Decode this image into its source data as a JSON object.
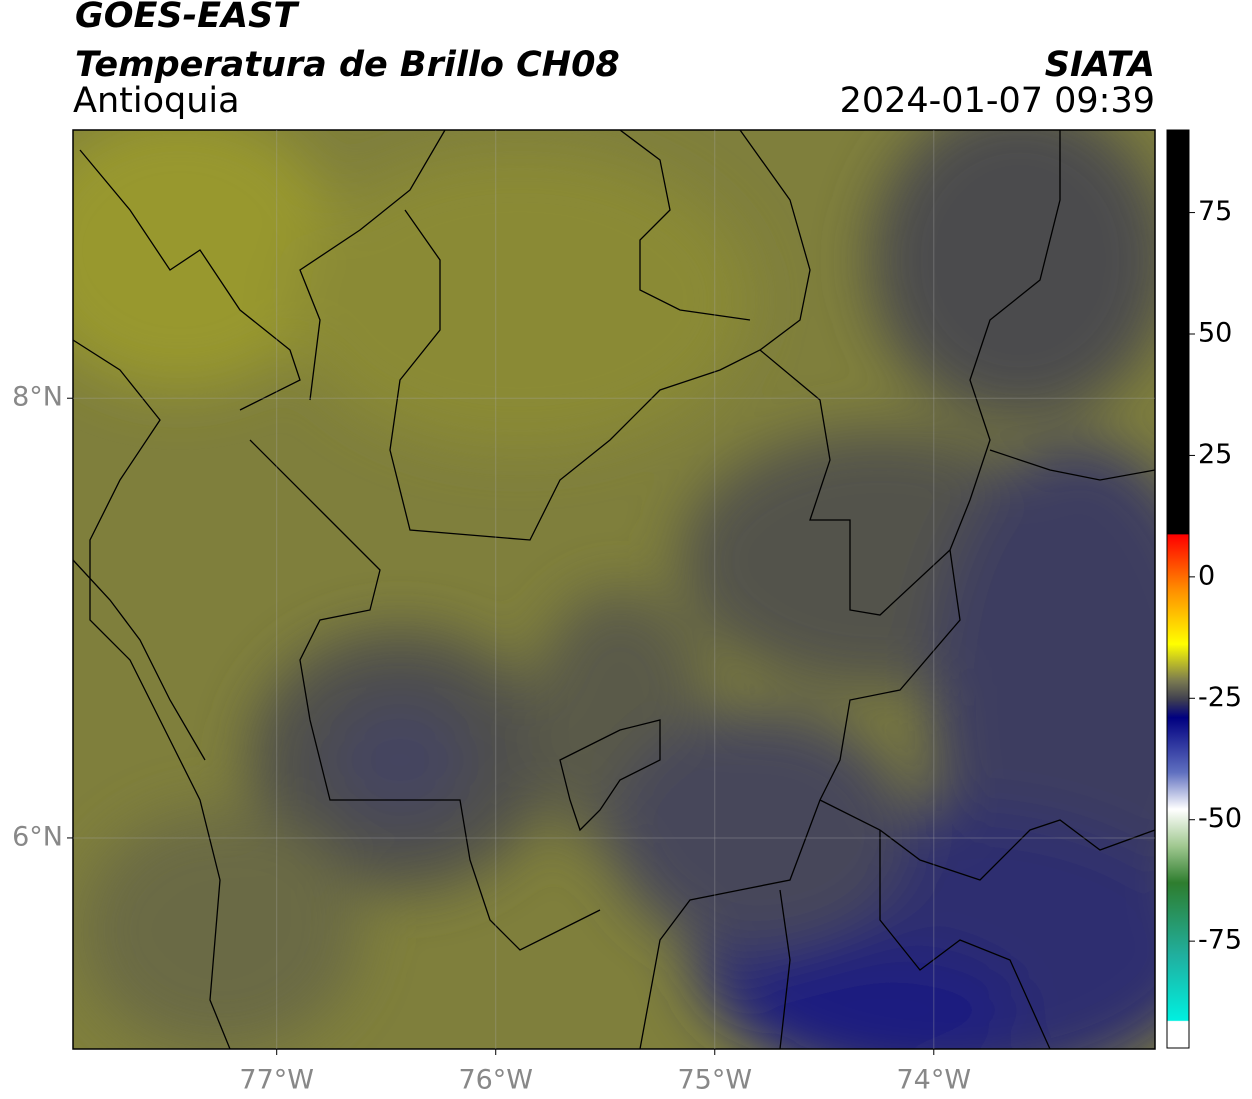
{
  "chart_data": {
    "type": "map",
    "title": "GOES-EAST",
    "subtitle": "Temperatura de Brillo CH08",
    "region": "Antioquia",
    "source": "SIATA",
    "timestamp": "2024-01-07 09:39",
    "xlim": [
      -77.93,
      -72.99
    ],
    "ylim": [
      5.04,
      9.22
    ],
    "xticks": [
      {
        "value": -77,
        "label": "77°W"
      },
      {
        "value": -76,
        "label": "76°W"
      },
      {
        "value": -75,
        "label": "75°W"
      },
      {
        "value": -74,
        "label": "74°W"
      }
    ],
    "yticks": [
      {
        "value": 6,
        "label": "6°N"
      },
      {
        "value": 8,
        "label": "8°N"
      }
    ],
    "grid": true,
    "colorbar": {
      "lim": [
        -97,
        92
      ],
      "ticks": [
        75,
        50,
        25,
        0,
        -25,
        -50,
        -75
      ]
    }
  }
}
